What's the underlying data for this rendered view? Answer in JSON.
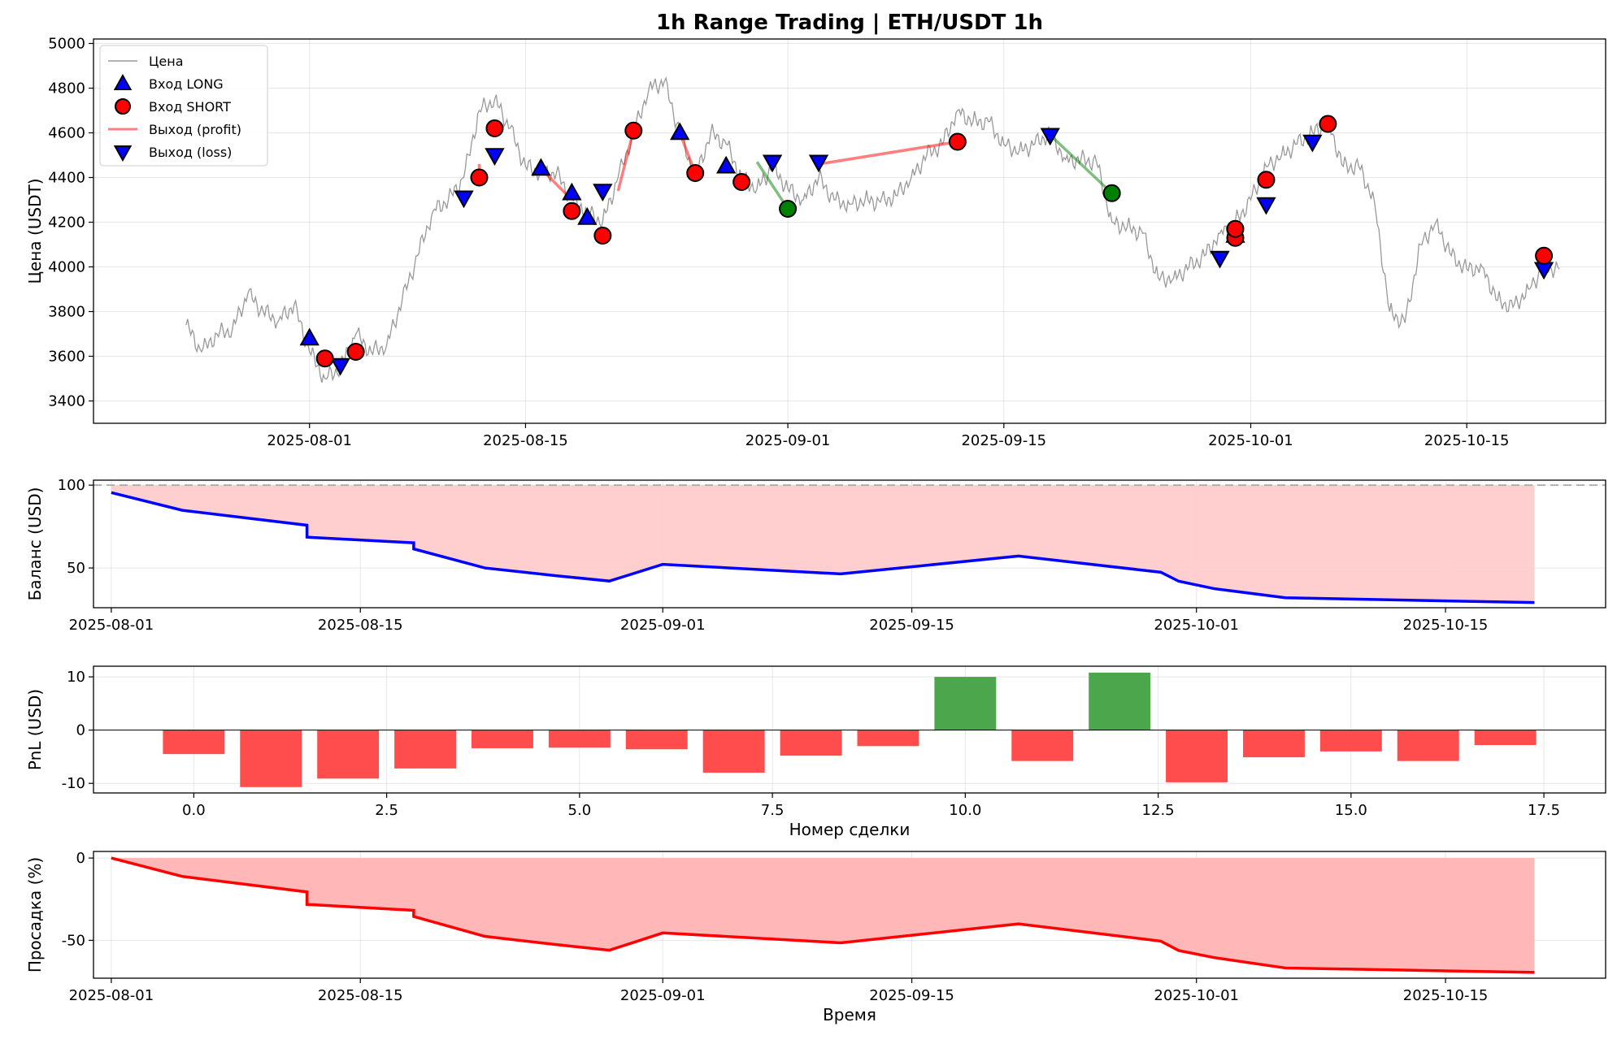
{
  "chart_data": [
    {
      "id": "price",
      "type": "line",
      "title": "1h Range Trading | ETH/USDT 1h",
      "xlabel": "",
      "ylabel": "Цена (USDT)",
      "ylim": [
        3300,
        5020
      ],
      "xlim": [
        "2025-07-18",
        "2025-10-24"
      ],
      "grid": true,
      "x_ticks": [
        "2025-08-01",
        "2025-08-15",
        "2025-09-01",
        "2025-09-15",
        "2025-10-01",
        "2025-10-15"
      ],
      "y_ticks": [
        3400,
        3600,
        3800,
        4000,
        4200,
        4400,
        4600,
        4800,
        5000
      ],
      "legend": {
        "placement": "top-left",
        "entries": [
          "Цена",
          "Вход LONG",
          "Вход SHORT",
          "Выход (profit)",
          "Выход (loss)"
        ]
      },
      "colors": {
        "price": "#999999",
        "long": "#0000ff",
        "short": "#ff0000",
        "profit_exit": "#008000",
        "loss_exit": "#0000ff",
        "profit_line": "#008000",
        "loss_line": "#ff0000"
      },
      "price_series": {
        "name": "Цена",
        "x": [
          "2025-07-24",
          "2025-07-25",
          "2025-07-26",
          "2025-07-27",
          "2025-07-28",
          "2025-07-29",
          "2025-07-30",
          "2025-07-31",
          "2025-08-01",
          "2025-08-02",
          "2025-08-03",
          "2025-08-04",
          "2025-08-05",
          "2025-08-06",
          "2025-08-07",
          "2025-08-08",
          "2025-08-09",
          "2025-08-10",
          "2025-08-11",
          "2025-08-12",
          "2025-08-13",
          "2025-08-14",
          "2025-08-15",
          "2025-08-16",
          "2025-08-17",
          "2025-08-18",
          "2025-08-19",
          "2025-08-20",
          "2025-08-21",
          "2025-08-22",
          "2025-08-23",
          "2025-08-24",
          "2025-08-25",
          "2025-08-26",
          "2025-08-27",
          "2025-08-28",
          "2025-08-29",
          "2025-08-30",
          "2025-08-31",
          "2025-09-01",
          "2025-09-02",
          "2025-09-03",
          "2025-09-04",
          "2025-09-05",
          "2025-09-06",
          "2025-09-07",
          "2025-09-08",
          "2025-09-09",
          "2025-09-10",
          "2025-09-11",
          "2025-09-12",
          "2025-09-13",
          "2025-09-14",
          "2025-09-15",
          "2025-09-16",
          "2025-09-17",
          "2025-09-18",
          "2025-09-19",
          "2025-09-20",
          "2025-09-21",
          "2025-09-22",
          "2025-09-23",
          "2025-09-24",
          "2025-09-25",
          "2025-09-26",
          "2025-09-27",
          "2025-09-28",
          "2025-09-29",
          "2025-09-30",
          "2025-10-01",
          "2025-10-02",
          "2025-10-03",
          "2025-10-04",
          "2025-10-05",
          "2025-10-06",
          "2025-10-07",
          "2025-10-08",
          "2025-10-09",
          "2025-10-10",
          "2025-10-11",
          "2025-10-12",
          "2025-10-13",
          "2025-10-14",
          "2025-10-15",
          "2025-10-16",
          "2025-10-17",
          "2025-10-18",
          "2025-10-19",
          "2025-10-20",
          "2025-10-21"
        ],
        "values": [
          3740,
          3620,
          3700,
          3720,
          3880,
          3800,
          3760,
          3830,
          3620,
          3500,
          3550,
          3700,
          3620,
          3650,
          3850,
          4050,
          4250,
          4300,
          4400,
          4700,
          4750,
          4620,
          4450,
          4420,
          4420,
          4300,
          4250,
          4200,
          4400,
          4600,
          4800,
          4830,
          4600,
          4400,
          4600,
          4550,
          4400,
          4350,
          4450,
          4350,
          4300,
          4400,
          4300,
          4280,
          4300,
          4290,
          4320,
          4400,
          4500,
          4550,
          4700,
          4650,
          4650,
          4550,
          4520,
          4550,
          4600,
          4480,
          4480,
          4470,
          4200,
          4180,
          4150,
          3950,
          3950,
          4000,
          4050,
          4150,
          4200,
          4300,
          4450,
          4500,
          4550,
          4600,
          4650,
          4450,
          4450,
          4300,
          3800,
          3750,
          4100,
          4200,
          4050,
          3990,
          4000,
          3850,
          3820,
          3900,
          4000,
          3990
        ]
      },
      "long_entries": {
        "name": "Вход LONG",
        "x": [
          "2025-08-01",
          "2025-08-16",
          "2025-08-18",
          "2025-08-19",
          "2025-08-25",
          "2025-08-28",
          "2025-09-30"
        ],
        "y": [
          3680,
          4440,
          4330,
          4220,
          4600,
          4450,
          4140
        ]
      },
      "short_entries": {
        "name": "Вход SHORT",
        "x": [
          "2025-08-02",
          "2025-08-04",
          "2025-08-12",
          "2025-08-13",
          "2025-08-18",
          "2025-08-20",
          "2025-08-22",
          "2025-08-26",
          "2025-08-29",
          "2025-09-12",
          "2025-09-30",
          "2025-09-30",
          "2025-10-02",
          "2025-10-06",
          "2025-10-20"
        ],
        "y": [
          3590,
          3620,
          4400,
          4620,
          4250,
          4140,
          4610,
          4420,
          4380,
          4560,
          4130,
          4170,
          4390,
          4640,
          4050
        ]
      },
      "profit_exits": {
        "name": "Выход (profit)",
        "x": [
          "2025-09-01",
          "2025-09-22"
        ],
        "y": [
          4260,
          4330
        ]
      },
      "loss_exits": {
        "name": "Выход (loss)",
        "x": [
          "2025-08-03",
          "2025-08-11",
          "2025-08-13",
          "2025-08-20",
          "2025-08-31",
          "2025-09-03",
          "2025-09-18",
          "2025-09-29",
          "2025-10-02",
          "2025-10-05",
          "2025-10-20"
        ],
        "y": [
          3560,
          4310,
          4500,
          4340,
          4470,
          4470,
          4590,
          4040,
          4280,
          4560,
          3990
        ]
      },
      "trade_lines": [
        {
          "result": "profit",
          "x": [
            "2025-08-30",
            "2025-09-01"
          ],
          "y": [
            4470,
            4260
          ]
        },
        {
          "result": "profit",
          "x": [
            "2025-09-18",
            "2025-09-22"
          ],
          "y": [
            4590,
            4330
          ]
        },
        {
          "result": "loss",
          "x": [
            "2025-08-12",
            "2025-08-12"
          ],
          "y": [
            4400,
            4460
          ]
        },
        {
          "result": "loss",
          "x": [
            "2025-08-16",
            "2025-08-18"
          ],
          "y": [
            4440,
            4300
          ]
        },
        {
          "result": "loss",
          "x": [
            "2025-08-21",
            "2025-08-22"
          ],
          "y": [
            4340,
            4610
          ]
        },
        {
          "result": "loss",
          "x": [
            "2025-08-25",
            "2025-08-26"
          ],
          "y": [
            4600,
            4420
          ]
        },
        {
          "result": "loss",
          "x": [
            "2025-09-03",
            "2025-09-12"
          ],
          "y": [
            4460,
            4560
          ]
        }
      ]
    },
    {
      "id": "balance",
      "type": "area",
      "xlabel": "",
      "ylabel": "Баланс (USD)",
      "ylim": [
        26,
        103
      ],
      "xlim": [
        "2025-07-31",
        "2025-10-24"
      ],
      "grid": true,
      "x_ticks": [
        "2025-08-01",
        "2025-08-15",
        "2025-09-01",
        "2025-09-15",
        "2025-10-01",
        "2025-10-15"
      ],
      "y_ticks": [
        50,
        100
      ],
      "baseline": 100,
      "colors": {
        "line": "#0000ff",
        "fill": "#ffcccc",
        "baseline": "#b0b0b0"
      },
      "x": [
        "2025-08-01",
        "2025-08-05",
        "2025-08-12",
        "2025-08-12",
        "2025-08-18",
        "2025-08-18",
        "2025-08-22",
        "2025-08-26",
        "2025-08-29",
        "2025-09-01",
        "2025-09-11",
        "2025-09-21",
        "2025-09-29",
        "2025-09-30",
        "2025-10-02",
        "2025-10-06",
        "2025-10-20"
      ],
      "values": [
        95.5,
        84.8,
        75.8,
        68.6,
        65.2,
        61.5,
        50.0,
        45.3,
        42.1,
        52.2,
        46.4,
        57.2,
        47.4,
        42.0,
        37.5,
        32.0,
        29.1
      ]
    },
    {
      "id": "pnl",
      "type": "bar",
      "xlabel": "Номер сделки",
      "ylabel": "PnL (USD)",
      "ylim": [
        -11.8,
        12
      ],
      "xlim": [
        -1.3,
        18.3
      ],
      "grid": true,
      "x_ticks": [
        0.0,
        2.5,
        5.0,
        7.5,
        10.0,
        12.5,
        15.0,
        17.5
      ],
      "y_ticks": [
        -10,
        0,
        10
      ],
      "colors": {
        "positive": "#4ca64c",
        "negative": "#ff4c4c"
      },
      "categories": [
        0,
        1,
        2,
        3,
        4,
        5,
        6,
        7,
        8,
        9,
        10,
        11,
        12,
        13,
        14,
        15,
        16,
        17
      ],
      "values": [
        -4.5,
        -10.7,
        -9.1,
        -7.2,
        -3.4,
        -3.3,
        -3.6,
        -8.0,
        -4.8,
        -3.0,
        10.0,
        -5.8,
        10.8,
        -9.8,
        -5.1,
        -4.0,
        -5.8,
        -2.8
      ]
    },
    {
      "id": "drawdown",
      "type": "area",
      "xlabel": "Время",
      "ylabel": "Просадка (%)",
      "ylim": [
        -73,
        4
      ],
      "xlim": [
        "2025-07-31",
        "2025-10-24"
      ],
      "grid": true,
      "x_ticks": [
        "2025-08-01",
        "2025-08-15",
        "2025-09-01",
        "2025-09-15",
        "2025-10-01",
        "2025-10-15"
      ],
      "y_ticks": [
        -50,
        0
      ],
      "colors": {
        "line": "#ff0000",
        "fill": "#ffb3b3"
      },
      "x": [
        "2025-08-01",
        "2025-08-05",
        "2025-08-12",
        "2025-08-12",
        "2025-08-18",
        "2025-08-18",
        "2025-08-22",
        "2025-08-26",
        "2025-08-29",
        "2025-09-01",
        "2025-09-11",
        "2025-09-21",
        "2025-09-29",
        "2025-09-30",
        "2025-10-02",
        "2025-10-06",
        "2025-10-20"
      ],
      "values": [
        0,
        -11.2,
        -20.6,
        -28.2,
        -31.8,
        -35.5,
        -47.6,
        -52.6,
        -56.0,
        -45.5,
        -51.5,
        -40.0,
        -50.5,
        -56.2,
        -60.5,
        -66.8,
        -69.5
      ]
    }
  ]
}
